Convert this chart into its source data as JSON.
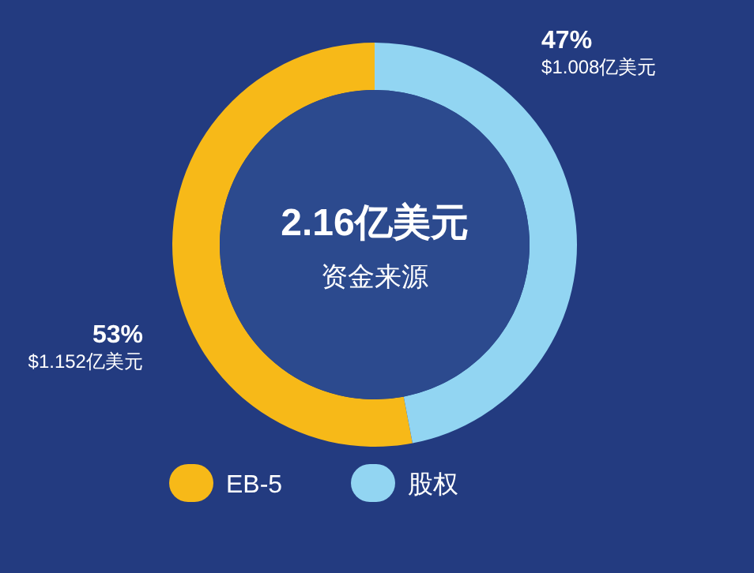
{
  "chart_data": {
    "type": "donut",
    "title": "2.16亿美元",
    "subtitle": "资金来源",
    "categories": [
      "EB-5",
      "股权"
    ],
    "values": [
      53,
      47
    ],
    "colors": [
      "#f7b918",
      "#92d5f2"
    ],
    "value_labels": [
      "53%",
      "47%"
    ],
    "annotations": [
      "$1.152亿美元",
      "$1.008亿美元"
    ],
    "legend": "bottom"
  }
}
